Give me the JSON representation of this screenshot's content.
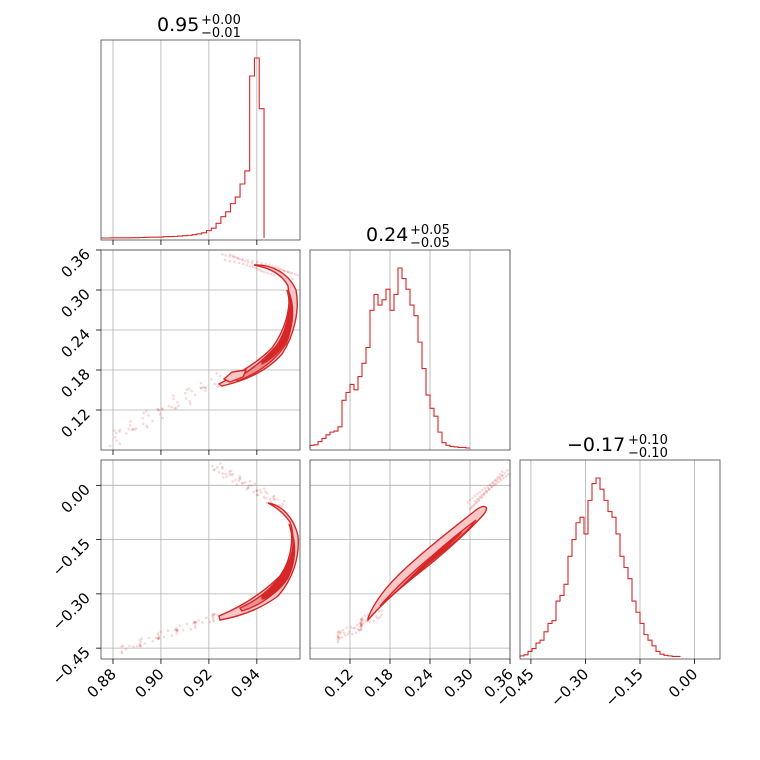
{
  "figure": {
    "type": "corner-plot",
    "color": "#d62728"
  },
  "chart_data": [
    {
      "id": "p1-hist",
      "type": "histogram",
      "title": {
        "value": "0.95",
        "plus": "+0.00",
        "minus": "−0.01"
      },
      "xlim": [
        0.875,
        0.958
      ],
      "bin_edges_start": 0.875,
      "bin_width": 0.002,
      "counts": [
        0,
        0,
        1,
        1,
        1,
        1,
        2,
        2,
        3,
        4,
        5,
        5,
        6,
        8,
        9,
        10,
        12,
        14,
        16,
        20,
        25,
        32,
        45,
        60,
        90,
        130,
        160,
        210,
        250,
        330,
        410,
        990,
        1100,
        790
      ]
    },
    {
      "id": "p2-hist",
      "type": "histogram",
      "title": {
        "value": "0.24",
        "plus": "+0.05",
        "minus": "−0.05"
      },
      "xlim": [
        0.06,
        0.36
      ],
      "bin_edges_start": 0.06,
      "bin_width": 0.006,
      "counts": [
        5,
        6,
        12,
        18,
        25,
        30,
        32,
        40,
        90,
        105,
        120,
        110,
        135,
        160,
        190,
        260,
        290,
        270,
        280,
        300,
        260,
        290,
        340,
        320,
        300,
        270,
        250,
        200,
        150,
        100,
        75,
        60,
        30,
        10,
        5,
        3,
        2,
        1,
        1,
        0
      ]
    },
    {
      "id": "p3-hist",
      "type": "histogram",
      "title": {
        "value": "−0.17",
        "plus": "+0.10",
        "minus": "−0.10"
      },
      "xlim": [
        -0.48,
        0.07
      ],
      "bin_edges_start": -0.48,
      "bin_width": 0.011,
      "counts": [
        2,
        4,
        10,
        15,
        25,
        30,
        45,
        60,
        65,
        100,
        110,
        130,
        180,
        210,
        240,
        250,
        220,
        280,
        310,
        320,
        300,
        280,
        260,
        250,
        220,
        180,
        160,
        140,
        100,
        80,
        60,
        40,
        30,
        20,
        10,
        5,
        3,
        2,
        1,
        1
      ]
    },
    {
      "id": "p2-vs-p1",
      "type": "contour",
      "xlim": [
        0.875,
        0.958
      ],
      "ylim": [
        0.06,
        0.36
      ],
      "yticks": [
        "0.12",
        "0.18",
        "0.24",
        "0.30",
        "0.36"
      ],
      "ytick_values": [
        0.12,
        0.18,
        0.24,
        0.3,
        0.36
      ]
    },
    {
      "id": "p3-vs-p1",
      "type": "contour",
      "xlim": [
        0.875,
        0.958
      ],
      "ylim": [
        -0.48,
        0.07
      ],
      "xticks": [
        "0.88",
        "0.90",
        "0.92",
        "0.94"
      ],
      "xtick_values": [
        0.88,
        0.9,
        0.92,
        0.94
      ],
      "yticks": [
        "−0.45",
        "−0.30",
        "−0.15",
        "0.00"
      ],
      "ytick_values": [
        -0.45,
        -0.3,
        -0.15,
        0.0
      ]
    },
    {
      "id": "p3-vs-p2",
      "type": "contour",
      "xlim": [
        0.06,
        0.36
      ],
      "ylim": [
        -0.48,
        0.07
      ],
      "xticks": [
        "0.12",
        "0.18",
        "0.24",
        "0.30",
        "0.36"
      ],
      "xtick_values": [
        0.12,
        0.18,
        0.24,
        0.3,
        0.36
      ]
    },
    {
      "id": "p3-bottom-axis",
      "xticks": [
        "−0.45",
        "−0.30",
        "−0.15",
        "0.00"
      ],
      "xtick_values": [
        -0.45,
        -0.3,
        -0.15,
        0.0
      ]
    }
  ]
}
